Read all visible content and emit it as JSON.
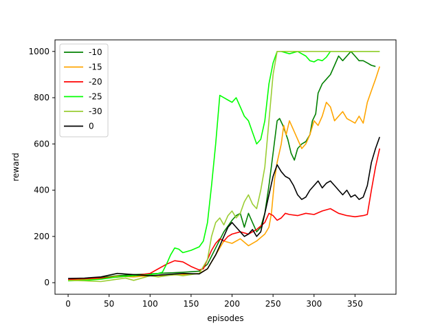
{
  "chart_data": {
    "type": "line",
    "title": "",
    "xlabel": "episodes",
    "ylabel": "reward",
    "xlim": [
      -16,
      400
    ],
    "ylim": [
      -50,
      1050
    ],
    "xticks": [
      0,
      50,
      100,
      150,
      200,
      250,
      300,
      350
    ],
    "yticks": [
      0,
      200,
      400,
      600,
      800,
      1000
    ],
    "grid": false,
    "legend_position": "top-left",
    "series": [
      {
        "name": "-10",
        "color": "#008000",
        "points": [
          [
            0,
            12
          ],
          [
            20,
            15
          ],
          [
            40,
            22
          ],
          [
            60,
            30
          ],
          [
            80,
            35
          ],
          [
            100,
            38
          ],
          [
            120,
            42
          ],
          [
            140,
            45
          ],
          [
            160,
            50
          ],
          [
            170,
            80
          ],
          [
            180,
            150
          ],
          [
            190,
            220
          ],
          [
            200,
            270
          ],
          [
            205,
            290
          ],
          [
            210,
            300
          ],
          [
            215,
            240
          ],
          [
            220,
            300
          ],
          [
            225,
            260
          ],
          [
            230,
            220
          ],
          [
            235,
            240
          ],
          [
            240,
            300
          ],
          [
            245,
            420
          ],
          [
            250,
            560
          ],
          [
            255,
            700
          ],
          [
            258,
            710
          ],
          [
            262,
            680
          ],
          [
            268,
            620
          ],
          [
            272,
            560
          ],
          [
            276,
            530
          ],
          [
            280,
            580
          ],
          [
            285,
            600
          ],
          [
            290,
            610
          ],
          [
            295,
            640
          ],
          [
            298,
            700
          ],
          [
            302,
            730
          ],
          [
            305,
            820
          ],
          [
            310,
            860
          ],
          [
            315,
            880
          ],
          [
            320,
            900
          ],
          [
            325,
            940
          ],
          [
            330,
            980
          ],
          [
            335,
            960
          ],
          [
            340,
            980
          ],
          [
            345,
            1000
          ],
          [
            350,
            980
          ],
          [
            355,
            960
          ],
          [
            360,
            960
          ],
          [
            365,
            950
          ],
          [
            370,
            940
          ],
          [
            375,
            935
          ]
        ]
      },
      {
        "name": "-15",
        "color": "#FFA500",
        "points": [
          [
            0,
            10
          ],
          [
            20,
            12
          ],
          [
            40,
            18
          ],
          [
            60,
            28
          ],
          [
            80,
            25
          ],
          [
            100,
            30
          ],
          [
            120,
            32
          ],
          [
            140,
            35
          ],
          [
            160,
            40
          ],
          [
            170,
            60
          ],
          [
            180,
            120
          ],
          [
            190,
            180
          ],
          [
            200,
            170
          ],
          [
            210,
            190
          ],
          [
            220,
            160
          ],
          [
            230,
            180
          ],
          [
            240,
            210
          ],
          [
            245,
            240
          ],
          [
            248,
            300
          ],
          [
            252,
            450
          ],
          [
            255,
            520
          ],
          [
            260,
            600
          ],
          [
            263,
            680
          ],
          [
            266,
            640
          ],
          [
            270,
            700
          ],
          [
            275,
            660
          ],
          [
            280,
            620
          ],
          [
            285,
            580
          ],
          [
            290,
            600
          ],
          [
            295,
            640
          ],
          [
            300,
            700
          ],
          [
            305,
            680
          ],
          [
            310,
            720
          ],
          [
            315,
            780
          ],
          [
            320,
            760
          ],
          [
            325,
            700
          ],
          [
            330,
            720
          ],
          [
            335,
            740
          ],
          [
            340,
            710
          ],
          [
            345,
            700
          ],
          [
            350,
            690
          ],
          [
            355,
            720
          ],
          [
            360,
            690
          ],
          [
            365,
            780
          ],
          [
            370,
            830
          ],
          [
            375,
            880
          ],
          [
            380,
            935
          ]
        ]
      },
      {
        "name": "-20",
        "color": "#FF0000",
        "points": [
          [
            0,
            14
          ],
          [
            20,
            18
          ],
          [
            40,
            20
          ],
          [
            60,
            24
          ],
          [
            80,
            30
          ],
          [
            100,
            40
          ],
          [
            110,
            60
          ],
          [
            120,
            80
          ],
          [
            130,
            95
          ],
          [
            140,
            90
          ],
          [
            150,
            70
          ],
          [
            160,
            55
          ],
          [
            165,
            60
          ],
          [
            170,
            100
          ],
          [
            175,
            140
          ],
          [
            180,
            170
          ],
          [
            185,
            190
          ],
          [
            190,
            180
          ],
          [
            195,
            200
          ],
          [
            200,
            210
          ],
          [
            210,
            220
          ],
          [
            220,
            210
          ],
          [
            230,
            230
          ],
          [
            240,
            260
          ],
          [
            245,
            300
          ],
          [
            250,
            290
          ],
          [
            255,
            270
          ],
          [
            260,
            280
          ],
          [
            265,
            300
          ],
          [
            270,
            295
          ],
          [
            280,
            290
          ],
          [
            290,
            300
          ],
          [
            300,
            295
          ],
          [
            310,
            310
          ],
          [
            320,
            320
          ],
          [
            330,
            300
          ],
          [
            340,
            290
          ],
          [
            350,
            285
          ],
          [
            360,
            290
          ],
          [
            365,
            295
          ],
          [
            370,
            400
          ],
          [
            375,
            500
          ],
          [
            380,
            580
          ]
        ]
      },
      {
        "name": "-25",
        "color": "#00FF00",
        "points": [
          [
            0,
            8
          ],
          [
            20,
            10
          ],
          [
            40,
            15
          ],
          [
            60,
            25
          ],
          [
            80,
            30
          ],
          [
            100,
            35
          ],
          [
            110,
            40
          ],
          [
            115,
            45
          ],
          [
            120,
            80
          ],
          [
            125,
            120
          ],
          [
            130,
            150
          ],
          [
            135,
            145
          ],
          [
            140,
            130
          ],
          [
            150,
            140
          ],
          [
            160,
            155
          ],
          [
            165,
            180
          ],
          [
            170,
            260
          ],
          [
            175,
            420
          ],
          [
            180,
            600
          ],
          [
            185,
            810
          ],
          [
            190,
            800
          ],
          [
            195,
            790
          ],
          [
            200,
            780
          ],
          [
            205,
            800
          ],
          [
            210,
            760
          ],
          [
            215,
            720
          ],
          [
            220,
            700
          ],
          [
            225,
            650
          ],
          [
            230,
            600
          ],
          [
            235,
            620
          ],
          [
            240,
            700
          ],
          [
            245,
            860
          ],
          [
            250,
            950
          ],
          [
            255,
            1000
          ],
          [
            260,
            1000
          ],
          [
            270,
            990
          ],
          [
            280,
            1000
          ],
          [
            290,
            980
          ],
          [
            295,
            960
          ],
          [
            300,
            955
          ],
          [
            305,
            965
          ],
          [
            310,
            960
          ],
          [
            315,
            975
          ],
          [
            320,
            1000
          ],
          [
            330,
            1000
          ],
          [
            340,
            1000
          ],
          [
            350,
            1000
          ],
          [
            360,
            1000
          ],
          [
            370,
            1000
          ],
          [
            380,
            1000
          ]
        ]
      },
      {
        "name": "-30",
        "color": "#9ACD32",
        "points": [
          [
            0,
            10
          ],
          [
            20,
            8
          ],
          [
            40,
            5
          ],
          [
            50,
            10
          ],
          [
            60,
            15
          ],
          [
            70,
            20
          ],
          [
            80,
            10
          ],
          [
            90,
            20
          ],
          [
            100,
            30
          ],
          [
            110,
            25
          ],
          [
            120,
            30
          ],
          [
            130,
            35
          ],
          [
            140,
            30
          ],
          [
            150,
            35
          ],
          [
            160,
            40
          ],
          [
            170,
            100
          ],
          [
            175,
            200
          ],
          [
            180,
            260
          ],
          [
            185,
            280
          ],
          [
            190,
            250
          ],
          [
            195,
            290
          ],
          [
            200,
            310
          ],
          [
            205,
            280
          ],
          [
            210,
            300
          ],
          [
            215,
            350
          ],
          [
            220,
            380
          ],
          [
            225,
            340
          ],
          [
            230,
            320
          ],
          [
            235,
            400
          ],
          [
            240,
            500
          ],
          [
            245,
            700
          ],
          [
            250,
            900
          ],
          [
            255,
            1000
          ],
          [
            270,
            1000
          ],
          [
            300,
            1000
          ],
          [
            330,
            1000
          ],
          [
            360,
            1000
          ],
          [
            380,
            1000
          ]
        ]
      },
      {
        "name": "0",
        "color": "#000000",
        "points": [
          [
            0,
            18
          ],
          [
            20,
            20
          ],
          [
            40,
            25
          ],
          [
            60,
            40
          ],
          [
            80,
            35
          ],
          [
            100,
            30
          ],
          [
            120,
            35
          ],
          [
            140,
            40
          ],
          [
            160,
            38
          ],
          [
            170,
            60
          ],
          [
            175,
            90
          ],
          [
            180,
            120
          ],
          [
            185,
            160
          ],
          [
            190,
            200
          ],
          [
            195,
            240
          ],
          [
            200,
            260
          ],
          [
            205,
            240
          ],
          [
            210,
            220
          ],
          [
            215,
            200
          ],
          [
            220,
            210
          ],
          [
            225,
            230
          ],
          [
            230,
            200
          ],
          [
            235,
            220
          ],
          [
            240,
            300
          ],
          [
            245,
            380
          ],
          [
            250,
            460
          ],
          [
            255,
            510
          ],
          [
            260,
            480
          ],
          [
            265,
            460
          ],
          [
            270,
            450
          ],
          [
            275,
            420
          ],
          [
            280,
            380
          ],
          [
            285,
            360
          ],
          [
            290,
            370
          ],
          [
            295,
            400
          ],
          [
            300,
            420
          ],
          [
            305,
            440
          ],
          [
            310,
            410
          ],
          [
            315,
            430
          ],
          [
            320,
            440
          ],
          [
            325,
            420
          ],
          [
            330,
            400
          ],
          [
            335,
            380
          ],
          [
            340,
            400
          ],
          [
            345,
            370
          ],
          [
            350,
            380
          ],
          [
            355,
            360
          ],
          [
            360,
            370
          ],
          [
            365,
            420
          ],
          [
            370,
            520
          ],
          [
            375,
            580
          ],
          [
            380,
            630
          ]
        ]
      }
    ]
  }
}
